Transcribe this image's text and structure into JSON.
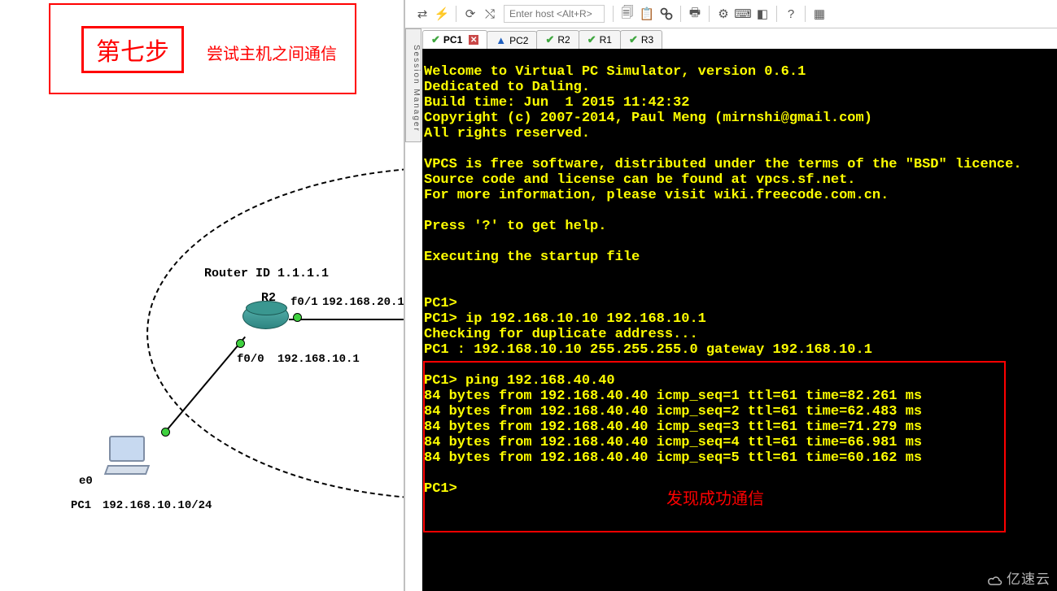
{
  "step_box": {
    "number": "第七步",
    "description": "尝试主机之间通信",
    "border_color": "#ff0000"
  },
  "topology": {
    "router_id_label": "Router ID 1.1.1.1",
    "router_name": "R2",
    "int_f01": "f0/1",
    "ip_f01": "192.168.20.1",
    "int_f00": "f0/0",
    "ip_f00": "192.168.10.1",
    "pc_e0": "e0",
    "pc_name": "PC1",
    "pc_ip": "192.168.10.10/24",
    "router_color": "#3a9790",
    "dot_color": "#3fd13f"
  },
  "toolbar": {
    "host_placeholder": "Enter host <Alt+R>"
  },
  "session_mgr": "Session Manager",
  "tabs": [
    {
      "label": "PC1",
      "status": "check",
      "active": true,
      "closable": true
    },
    {
      "label": "PC2",
      "status": "warn",
      "active": false,
      "closable": false
    },
    {
      "label": "R2",
      "status": "check",
      "active": false,
      "closable": false
    },
    {
      "label": "R1",
      "status": "check",
      "active": false,
      "closable": false
    },
    {
      "label": "R3",
      "status": "check",
      "active": false,
      "closable": false
    }
  ],
  "terminal": {
    "bg": "#000000",
    "fg": "#ffff00",
    "font_family": "Courier New",
    "font_size": 17,
    "lines": [
      "",
      "Welcome to Virtual PC Simulator, version 0.6.1",
      "Dedicated to Daling.",
      "Build time: Jun  1 2015 11:42:32",
      "Copyright (c) 2007-2014, Paul Meng (mirnshi@gmail.com)",
      "All rights reserved.",
      "",
      "VPCS is free software, distributed under the terms of the \"BSD\" licence.",
      "Source code and license can be found at vpcs.sf.net.",
      "For more information, please visit wiki.freecode.com.cn.",
      "",
      "Press '?' to get help.",
      "",
      "Executing the startup file",
      "",
      "",
      "PC1>",
      "PC1> ip 192.168.10.10 192.168.10.1",
      "Checking for duplicate address...",
      "PC1 : 192.168.10.10 255.255.255.0 gateway 192.168.10.1",
      "",
      "PC1> ping 192.168.40.40",
      "84 bytes from 192.168.40.40 icmp_seq=1 ttl=61 time=82.261 ms",
      "84 bytes from 192.168.40.40 icmp_seq=2 ttl=61 time=62.483 ms",
      "84 bytes from 192.168.40.40 icmp_seq=3 ttl=61 time=71.279 ms",
      "84 bytes from 192.168.40.40 icmp_seq=4 ttl=61 time=66.981 ms",
      "84 bytes from 192.168.40.40 icmp_seq=5 ttl=61 time=60.162 ms",
      "",
      "PC1>"
    ]
  },
  "highlight": {
    "border_color": "#ff0000",
    "success_note": "发现成功通信"
  },
  "watermark": "亿速云"
}
